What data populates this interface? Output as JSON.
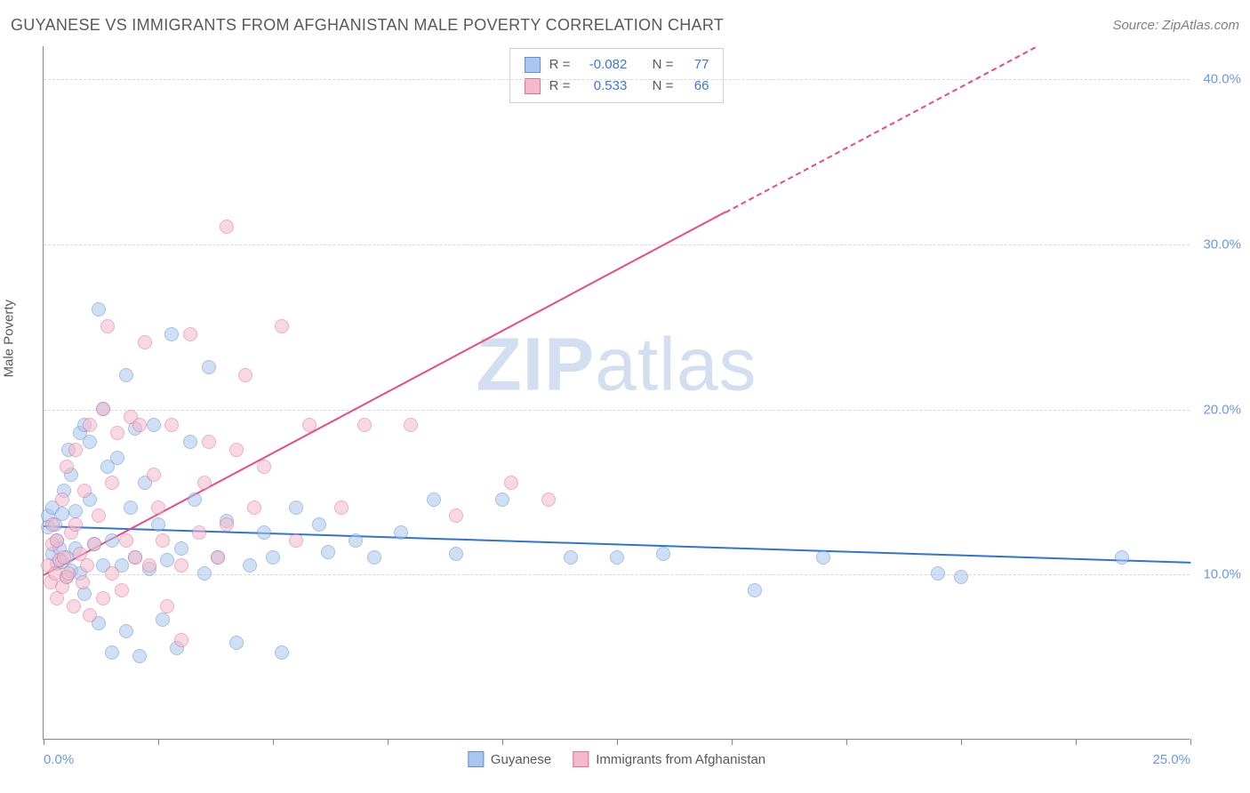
{
  "title": "GUYANESE VS IMMIGRANTS FROM AFGHANISTAN MALE POVERTY CORRELATION CHART",
  "source": "Source: ZipAtlas.com",
  "ylabel": "Male Poverty",
  "watermark_bold": "ZIP",
  "watermark_rest": "atlas",
  "chart": {
    "type": "scatter",
    "background_color": "#ffffff",
    "grid_color": "#d8d8d8",
    "axis_color": "#888888",
    "xlim": [
      0,
      25
    ],
    "ylim": [
      0,
      42
    ],
    "xticks": [
      0,
      2.5,
      5,
      7.5,
      10,
      12.5,
      15,
      17.5,
      20,
      22.5,
      25
    ],
    "xtick_labels": {
      "0": "0.0%",
      "25": "25.0%"
    },
    "ygrid": [
      10,
      20,
      30,
      40
    ],
    "ytick_labels": {
      "10": "10.0%",
      "20": "20.0%",
      "30": "30.0%",
      "40": "40.0%"
    },
    "tick_fontsize": 15,
    "tick_color": "#6a99e4",
    "marker_radius": 8,
    "marker_opacity": 0.55,
    "series": [
      {
        "name": "Guyanese",
        "fill": "#a9c7ed",
        "stroke": "#5f8fd6",
        "R": "-0.082",
        "N": "77",
        "trend": {
          "color": "#2f73d8",
          "width": 2.5,
          "y_at_x0": 13.0,
          "y_at_x25": 10.8
        },
        "points": [
          [
            0.1,
            13.5
          ],
          [
            0.1,
            12.8
          ],
          [
            0.2,
            11.2
          ],
          [
            0.2,
            14.0
          ],
          [
            0.25,
            13.0
          ],
          [
            0.3,
            10.6
          ],
          [
            0.3,
            12.0
          ],
          [
            0.35,
            11.5
          ],
          [
            0.4,
            10.7
          ],
          [
            0.4,
            13.6
          ],
          [
            0.45,
            15.0
          ],
          [
            0.5,
            9.8
          ],
          [
            0.5,
            11.0
          ],
          [
            0.55,
            17.5
          ],
          [
            0.6,
            16.0
          ],
          [
            0.6,
            10.2
          ],
          [
            0.7,
            11.5
          ],
          [
            0.7,
            13.8
          ],
          [
            0.8,
            18.5
          ],
          [
            0.8,
            10.0
          ],
          [
            0.9,
            19.0
          ],
          [
            0.9,
            8.8
          ],
          [
            1.0,
            14.5
          ],
          [
            1.0,
            18.0
          ],
          [
            1.1,
            11.8
          ],
          [
            1.2,
            26.0
          ],
          [
            1.2,
            7.0
          ],
          [
            1.3,
            10.5
          ],
          [
            1.3,
            20.0
          ],
          [
            1.4,
            16.5
          ],
          [
            1.5,
            12.0
          ],
          [
            1.5,
            5.2
          ],
          [
            1.6,
            17.0
          ],
          [
            1.7,
            10.5
          ],
          [
            1.8,
            22.0
          ],
          [
            1.8,
            6.5
          ],
          [
            1.9,
            14.0
          ],
          [
            2.0,
            18.8
          ],
          [
            2.0,
            11.0
          ],
          [
            2.1,
            5.0
          ],
          [
            2.2,
            15.5
          ],
          [
            2.3,
            10.3
          ],
          [
            2.4,
            19.0
          ],
          [
            2.5,
            13.0
          ],
          [
            2.6,
            7.2
          ],
          [
            2.7,
            10.8
          ],
          [
            2.8,
            24.5
          ],
          [
            2.9,
            5.5
          ],
          [
            3.0,
            11.5
          ],
          [
            3.2,
            18.0
          ],
          [
            3.3,
            14.5
          ],
          [
            3.5,
            10.0
          ],
          [
            3.6,
            22.5
          ],
          [
            3.8,
            11.0
          ],
          [
            4.0,
            13.2
          ],
          [
            4.2,
            5.8
          ],
          [
            4.5,
            10.5
          ],
          [
            4.8,
            12.5
          ],
          [
            5.0,
            11.0
          ],
          [
            5.2,
            5.2
          ],
          [
            5.5,
            14.0
          ],
          [
            6.0,
            13.0
          ],
          [
            6.2,
            11.3
          ],
          [
            6.8,
            12.0
          ],
          [
            7.2,
            11.0
          ],
          [
            7.8,
            12.5
          ],
          [
            8.5,
            14.5
          ],
          [
            9.0,
            11.2
          ],
          [
            10.0,
            14.5
          ],
          [
            11.5,
            11.0
          ],
          [
            12.5,
            11.0
          ],
          [
            13.5,
            11.2
          ],
          [
            15.5,
            9.0
          ],
          [
            17.0,
            11.0
          ],
          [
            19.5,
            10.0
          ],
          [
            20.0,
            9.8
          ],
          [
            23.5,
            11.0
          ]
        ]
      },
      {
        "name": "Immigrants from Afghanistan",
        "fill": "#f4bacb",
        "stroke": "#e56e93",
        "R": "0.533",
        "N": "66",
        "trend": {
          "color": "#e84b7e",
          "width": 2.5,
          "y_at_x0": 10.0,
          "y_at_x25": 47.0,
          "dash_above_y": 32
        },
        "points": [
          [
            0.1,
            10.5
          ],
          [
            0.15,
            9.5
          ],
          [
            0.2,
            11.8
          ],
          [
            0.2,
            13.0
          ],
          [
            0.25,
            10.0
          ],
          [
            0.3,
            8.5
          ],
          [
            0.3,
            12.0
          ],
          [
            0.35,
            10.8
          ],
          [
            0.4,
            9.2
          ],
          [
            0.4,
            14.5
          ],
          [
            0.45,
            11.0
          ],
          [
            0.5,
            16.5
          ],
          [
            0.5,
            9.8
          ],
          [
            0.55,
            10.0
          ],
          [
            0.6,
            12.5
          ],
          [
            0.65,
            8.0
          ],
          [
            0.7,
            13.0
          ],
          [
            0.7,
            17.5
          ],
          [
            0.8,
            11.2
          ],
          [
            0.85,
            9.5
          ],
          [
            0.9,
            15.0
          ],
          [
            0.95,
            10.5
          ],
          [
            1.0,
            19.0
          ],
          [
            1.0,
            7.5
          ],
          [
            1.1,
            11.8
          ],
          [
            1.2,
            13.5
          ],
          [
            1.3,
            20.0
          ],
          [
            1.3,
            8.5
          ],
          [
            1.4,
            25.0
          ],
          [
            1.5,
            15.5
          ],
          [
            1.5,
            10.0
          ],
          [
            1.6,
            18.5
          ],
          [
            1.7,
            9.0
          ],
          [
            1.8,
            12.0
          ],
          [
            1.9,
            19.5
          ],
          [
            2.0,
            11.0
          ],
          [
            2.1,
            19.0
          ],
          [
            2.2,
            24.0
          ],
          [
            2.3,
            10.5
          ],
          [
            2.4,
            16.0
          ],
          [
            2.5,
            14.0
          ],
          [
            2.6,
            12.0
          ],
          [
            2.7,
            8.0
          ],
          [
            2.8,
            19.0
          ],
          [
            3.0,
            6.0
          ],
          [
            3.0,
            10.5
          ],
          [
            3.2,
            24.5
          ],
          [
            3.4,
            12.5
          ],
          [
            3.5,
            15.5
          ],
          [
            3.6,
            18.0
          ],
          [
            3.8,
            11.0
          ],
          [
            4.0,
            31.0
          ],
          [
            4.0,
            13.0
          ],
          [
            4.2,
            17.5
          ],
          [
            4.4,
            22.0
          ],
          [
            4.6,
            14.0
          ],
          [
            4.8,
            16.5
          ],
          [
            5.2,
            25.0
          ],
          [
            5.5,
            12.0
          ],
          [
            5.8,
            19.0
          ],
          [
            6.5,
            14.0
          ],
          [
            7.0,
            19.0
          ],
          [
            8.0,
            19.0
          ],
          [
            9.0,
            13.5
          ],
          [
            10.2,
            15.5
          ],
          [
            11.0,
            14.5
          ]
        ]
      }
    ]
  },
  "legend_top": {
    "border_color": "#cfcfcf",
    "r_label": "R =",
    "n_label": "N ="
  },
  "legend_bottom": [
    {
      "label": "Guyanese",
      "fill": "#a9c7ed",
      "stroke": "#5f8fd6"
    },
    {
      "label": "Immigrants from Afghanistan",
      "fill": "#f4bacb",
      "stroke": "#e56e93"
    }
  ]
}
